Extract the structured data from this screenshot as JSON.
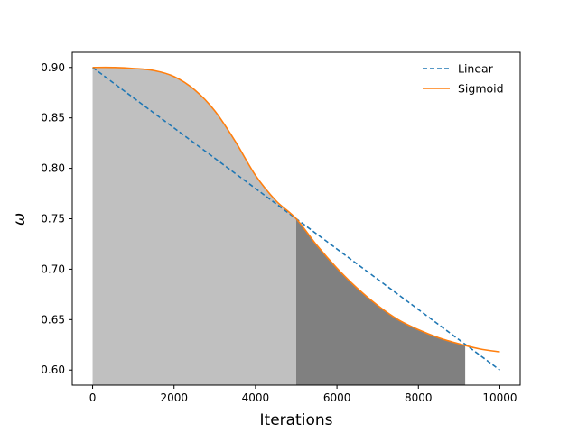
{
  "chart_data": {
    "type": "line",
    "title": "",
    "xlabel": "Iterations",
    "ylabel": "ω",
    "xlim": [
      -500,
      10500
    ],
    "ylim": [
      0.585,
      0.915
    ],
    "x_ticks": [
      0,
      2000,
      4000,
      6000,
      8000,
      10000
    ],
    "y_ticks": [
      0.6,
      0.65,
      0.7,
      0.75,
      0.8,
      0.85,
      0.9
    ],
    "x_tick_labels": [
      "0",
      "2000",
      "4000",
      "6000",
      "8000",
      "10000"
    ],
    "y_tick_labels": [
      "0.60",
      "0.65",
      "0.70",
      "0.75",
      "0.80",
      "0.85",
      "0.90"
    ],
    "grid": false,
    "legend_position": "top-right",
    "series": [
      {
        "name": "Linear",
        "style": "dashed",
        "color": "#1f77b4",
        "x": [
          0,
          10000
        ],
        "y": [
          0.9,
          0.6
        ]
      },
      {
        "name": "Sigmoid",
        "style": "solid",
        "color": "#ff7f0e",
        "x": [
          0,
          500,
          1000,
          1500,
          2000,
          2500,
          3000,
          3500,
          4000,
          4500,
          5000,
          5500,
          6000,
          6500,
          7000,
          7500,
          8000,
          8500,
          9000,
          9500,
          10000
        ],
        "y": [
          0.9,
          0.9,
          0.899,
          0.897,
          0.891,
          0.878,
          0.857,
          0.827,
          0.793,
          0.768,
          0.75,
          0.724,
          0.701,
          0.681,
          0.664,
          0.65,
          0.64,
          0.632,
          0.626,
          0.621,
          0.618
        ]
      }
    ],
    "shaded_regions": [
      {
        "color": "#c0c0c0",
        "x_from": 0,
        "x_to": 5000
      },
      {
        "color": "#808080",
        "x_from": 5000,
        "x_to": 9150
      }
    ]
  }
}
